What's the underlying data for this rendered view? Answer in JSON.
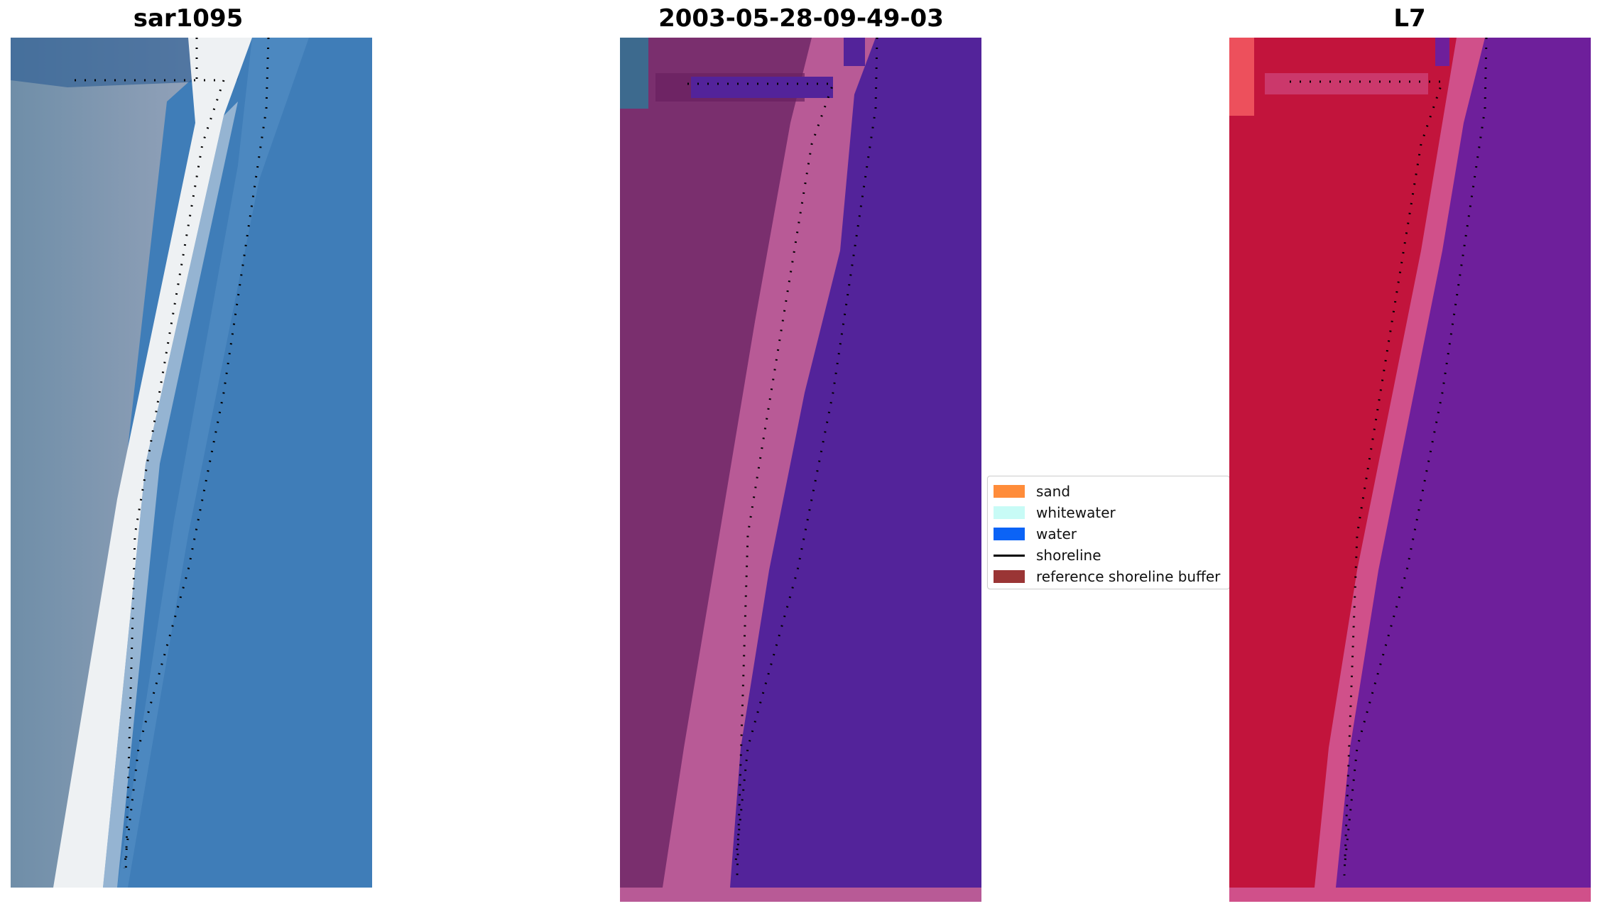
{
  "panels": [
    {
      "title": "sar1095",
      "kind": "rgb"
    },
    {
      "title": "2003-05-28-09-49-03",
      "kind": "classified"
    },
    {
      "title": "L7",
      "kind": "index"
    }
  ],
  "legend": {
    "items": [
      {
        "label": "sand",
        "color": "#ff8c3a"
      },
      {
        "label": "whitewater",
        "color": "#c8fbf6"
      },
      {
        "label": "water",
        "color": "#0b63f6"
      },
      {
        "label": "shoreline",
        "color": "#000000",
        "line": true
      },
      {
        "label": "reference shoreline buffer",
        "color": "#9a3535"
      }
    ]
  },
  "colors": {
    "rgb_water": "#3f7db8",
    "rgb_land": "#8aa0b8",
    "rgb_whitewater": "#f2f4f5",
    "class_water": "#53239a",
    "class_buffer": "#b85a96",
    "class_land": "#7a2f6e",
    "index_land": "#c2143c",
    "index_water": "#6e1f9b",
    "index_buffer": "#d0508a",
    "shoreline_dots": "#000000"
  }
}
